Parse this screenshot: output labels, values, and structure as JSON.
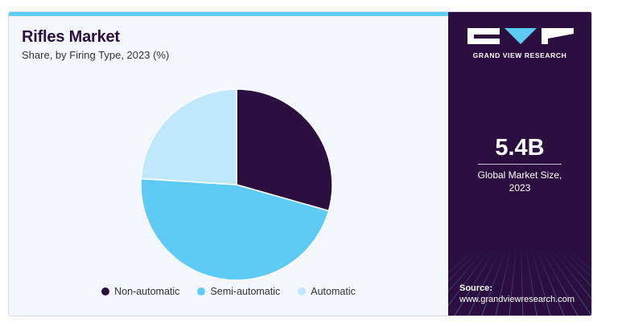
{
  "title": "Rifles Market",
  "subtitle": "Share, by Firing Type, 2023 (%)",
  "brand": {
    "name": "GRAND VIEW RESEARCH",
    "logo": "gvr-logo-icon"
  },
  "stat": {
    "value": "5.4B",
    "label_line1": "Global Market Size,",
    "label_line2": "2023"
  },
  "source": {
    "label": "Source:",
    "url": "www.grandviewresearch.com"
  },
  "colors": {
    "panel": "#2b0f3f",
    "accent": "#5ecbf5"
  },
  "chart_data": {
    "type": "pie",
    "title": "Rifles Market",
    "subtitle": "Share, by Firing Type, 2023 (%)",
    "start_angle_deg": 0,
    "direction": "clockwise",
    "legend_position": "bottom",
    "slices": [
      {
        "label": "Non-automatic",
        "value": 29.4,
        "color": "#2b0f3f"
      },
      {
        "label": "Semi-automatic",
        "value": 46.6,
        "color": "#5ecbf5"
      },
      {
        "label": "Automatic",
        "value": 24.0,
        "color": "#bfe8fa"
      }
    ]
  }
}
